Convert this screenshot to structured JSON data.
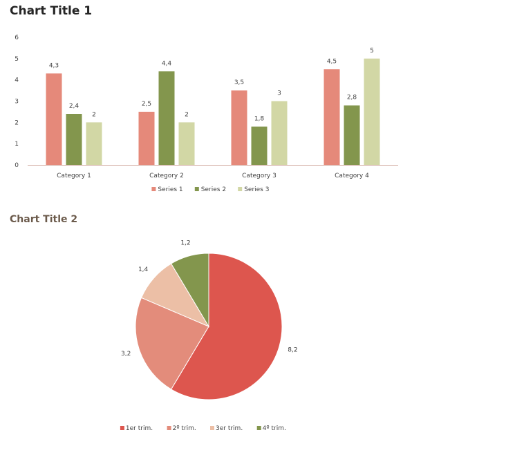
{
  "chart_data": [
    {
      "type": "bar",
      "title": "Chart Title 1",
      "categories": [
        "Category 1",
        "Category 2",
        "Category 3",
        "Category 4"
      ],
      "series": [
        {
          "name": "Series 1",
          "values": [
            4.3,
            2.5,
            3.5,
            4.5
          ],
          "labels": [
            "4,3",
            "2,5",
            "3,5",
            "4,5"
          ],
          "color": "#e5897a"
        },
        {
          "name": "Series 2",
          "values": [
            2.4,
            4.4,
            1.8,
            2.8
          ],
          "labels": [
            "2,4",
            "4,4",
            "1,8",
            "2,8"
          ],
          "color": "#83964d"
        },
        {
          "name": "Series 3",
          "values": [
            2,
            2,
            3,
            5
          ],
          "labels": [
            "2",
            "2",
            "3",
            "5"
          ],
          "color": "#d2d7a5"
        }
      ],
      "ylim": [
        0,
        6
      ],
      "yticks": [
        "0",
        "1",
        "2",
        "3",
        "4",
        "5",
        "6"
      ],
      "grid": false,
      "legend": "bottom"
    },
    {
      "type": "pie",
      "title": "Chart Title 2",
      "categories": [
        "1er trim.",
        "2º trim.",
        "3er trim.",
        "4º trim."
      ],
      "values": [
        8.2,
        3.2,
        1.4,
        1.2
      ],
      "labels": [
        "8,2",
        "3,2",
        "1,4",
        "1,2"
      ],
      "colors": [
        "#dd564e",
        "#e38c7b",
        "#ecbfa6",
        "#83964d"
      ],
      "legend": "bottom"
    }
  ]
}
